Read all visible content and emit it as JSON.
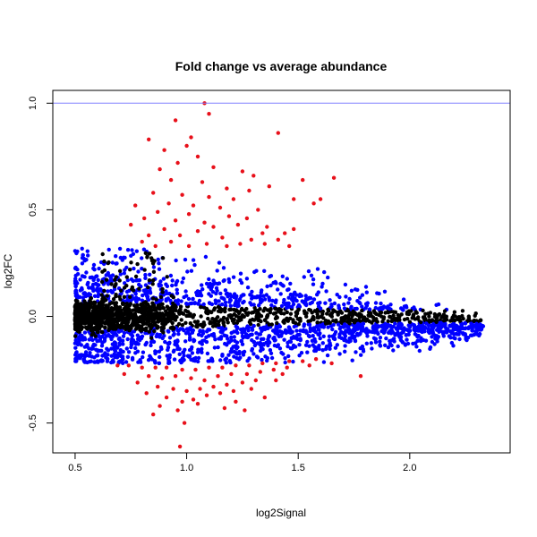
{
  "chart_data": {
    "type": "scatter",
    "title": "Fold change vs average abundance",
    "xlabel": "log2Signal",
    "ylabel": "log2FC",
    "xlim": [
      0.4,
      2.45
    ],
    "ylim": [
      -0.64,
      1.06
    ],
    "x_ticks": [
      {
        "value": 0.5,
        "label": "0.5"
      },
      {
        "value": 1.0,
        "label": "1.0"
      },
      {
        "value": 1.5,
        "label": "1.5"
      },
      {
        "value": 2.0,
        "label": "2.0"
      }
    ],
    "y_ticks": [
      {
        "value": -0.5,
        "label": "-0.5"
      },
      {
        "value": 0.0,
        "label": "0.0"
      },
      {
        "value": 0.5,
        "label": "0.5"
      },
      {
        "value": 1.0,
        "label": "1.0"
      }
    ],
    "grid": false,
    "legend": "none",
    "reference_line": {
      "y": 1.0,
      "color": "#8080ff"
    },
    "colors": {
      "not_significant": "#000000",
      "significant": "#0000ff",
      "large_change": "#e8101a"
    },
    "series": [
      {
        "color": "#e8101a",
        "points": [
          [
            1.08,
            1.0
          ],
          [
            1.1,
            0.95
          ],
          [
            0.95,
            0.92
          ],
          [
            1.41,
            0.86
          ],
          [
            0.83,
            0.83
          ],
          [
            1.02,
            0.84
          ],
          [
            1.0,
            0.8
          ],
          [
            0.9,
            0.78
          ],
          [
            1.05,
            0.75
          ],
          [
            0.96,
            0.72
          ],
          [
            1.12,
            0.7
          ],
          [
            0.88,
            0.69
          ],
          [
            1.25,
            0.68
          ],
          [
            1.3,
            0.66
          ],
          [
            1.66,
            0.65
          ],
          [
            1.52,
            0.64
          ],
          [
            0.93,
            0.64
          ],
          [
            1.07,
            0.63
          ],
          [
            1.18,
            0.6
          ],
          [
            1.28,
            0.59
          ],
          [
            1.37,
            0.61
          ],
          [
            0.85,
            0.58
          ],
          [
            0.98,
            0.57
          ],
          [
            1.1,
            0.56
          ],
          [
            1.21,
            0.55
          ],
          [
            1.48,
            0.55
          ],
          [
            1.6,
            0.55
          ],
          [
            1.57,
            0.53
          ],
          [
            0.92,
            0.53
          ],
          [
            1.03,
            0.52
          ],
          [
            1.15,
            0.51
          ],
          [
            1.32,
            0.5
          ],
          [
            0.77,
            0.52
          ],
          [
            0.87,
            0.49
          ],
          [
            1.01,
            0.48
          ],
          [
            1.19,
            0.47
          ],
          [
            1.27,
            0.46
          ],
          [
            0.81,
            0.46
          ],
          [
            0.95,
            0.45
          ],
          [
            1.08,
            0.44
          ],
          [
            1.23,
            0.43
          ],
          [
            1.36,
            0.42
          ],
          [
            0.75,
            0.43
          ],
          [
            0.9,
            0.41
          ],
          [
            1.05,
            0.4
          ],
          [
            1.12,
            0.42
          ],
          [
            1.34,
            0.39
          ],
          [
            1.44,
            0.39
          ],
          [
            1.48,
            0.41
          ],
          [
            0.83,
            0.38
          ],
          [
            0.97,
            0.38
          ],
          [
            1.16,
            0.37
          ],
          [
            1.29,
            0.36
          ],
          [
            1.41,
            0.36
          ],
          [
            0.8,
            0.35
          ],
          [
            0.93,
            0.35
          ],
          [
            1.09,
            0.34
          ],
          [
            1.24,
            0.34
          ],
          [
            1.35,
            0.34
          ],
          [
            1.46,
            0.33
          ],
          [
            0.86,
            0.33
          ],
          [
            1.01,
            0.33
          ],
          [
            1.18,
            0.33
          ],
          [
            0.69,
            -0.23
          ],
          [
            0.74,
            -0.23
          ],
          [
            0.8,
            -0.24
          ],
          [
            0.86,
            -0.24
          ],
          [
            0.91,
            -0.24
          ],
          [
            0.98,
            -0.25
          ],
          [
            1.04,
            -0.25
          ],
          [
            1.1,
            -0.24
          ],
          [
            1.16,
            -0.24
          ],
          [
            1.22,
            -0.23
          ],
          [
            1.28,
            -0.23
          ],
          [
            1.34,
            -0.22
          ],
          [
            1.4,
            -0.22
          ],
          [
            1.46,
            -0.21
          ],
          [
            1.52,
            -0.21
          ],
          [
            1.58,
            -0.2
          ],
          [
            0.72,
            -0.27
          ],
          [
            0.83,
            -0.28
          ],
          [
            0.89,
            -0.29
          ],
          [
            0.95,
            -0.28
          ],
          [
            1.02,
            -0.29
          ],
          [
            1.08,
            -0.3
          ],
          [
            1.14,
            -0.28
          ],
          [
            1.2,
            -0.27
          ],
          [
            1.27,
            -0.27
          ],
          [
            1.33,
            -0.26
          ],
          [
            1.39,
            -0.25
          ],
          [
            1.45,
            -0.24
          ],
          [
            1.55,
            -0.23
          ],
          [
            1.65,
            -0.22
          ],
          [
            0.78,
            -0.31
          ],
          [
            0.87,
            -0.33
          ],
          [
            0.94,
            -0.34
          ],
          [
            1.0,
            -0.35
          ],
          [
            1.06,
            -0.34
          ],
          [
            1.12,
            -0.33
          ],
          [
            1.18,
            -0.32
          ],
          [
            1.25,
            -0.31
          ],
          [
            1.31,
            -0.3
          ],
          [
            1.43,
            -0.27
          ],
          [
            1.78,
            -0.28
          ],
          [
            0.82,
            -0.36
          ],
          [
            0.91,
            -0.38
          ],
          [
            0.98,
            -0.4
          ],
          [
            1.03,
            -0.39
          ],
          [
            1.09,
            -0.37
          ],
          [
            1.15,
            -0.36
          ],
          [
            1.21,
            -0.35
          ],
          [
            1.29,
            -0.34
          ],
          [
            1.35,
            -0.38
          ],
          [
            0.88,
            -0.42
          ],
          [
            0.96,
            -0.44
          ],
          [
            1.05,
            -0.41
          ],
          [
            1.17,
            -0.43
          ],
          [
            1.26,
            -0.44
          ],
          [
            0.85,
            -0.46
          ],
          [
            0.99,
            -0.5
          ],
          [
            0.97,
            -0.61
          ],
          [
            1.22,
            -0.4
          ],
          [
            1.4,
            -0.3
          ]
        ]
      }
    ]
  }
}
